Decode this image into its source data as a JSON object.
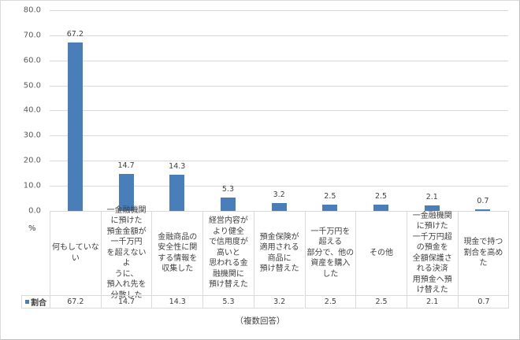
{
  "chart_data": {
    "type": "bar",
    "title": "",
    "xlabel": "",
    "ylabel": "%",
    "ylim": [
      0,
      80
    ],
    "yticks": [
      "0.0",
      "10.0",
      "20.0",
      "30.0",
      "40.0",
      "50.0",
      "60.0",
      "70.0",
      "80.0"
    ],
    "grid": true,
    "legend": {
      "position": "data-table",
      "entries": [
        "割合"
      ]
    },
    "categories": [
      "何もしていない",
      "一金融機関に預けた預金金額が一千万円を超えないように、預入れ先を分散した",
      "金融商品の安全性に関する情報を収集した",
      "経営内容がより健全で信用度が高いと思われる金融機関に預け替えた",
      "預金保険が適用される商品に預け替えた",
      "一千万円を超える部分で、他の資産を購入した",
      "その他",
      "一金融機関に預けた一千万円超の預金を全額保護される決済用預金へ預け替えた",
      "現金で持つ割合を高めた"
    ],
    "series": [
      {
        "name": "割合",
        "color": "#4a7ebb",
        "values": [
          67.2,
          14.7,
          14.3,
          5.3,
          3.2,
          2.5,
          2.5,
          2.1,
          0.7
        ]
      }
    ],
    "note": "（複数回答）"
  },
  "axis": {
    "unit_label": "%",
    "ticks": [
      {
        "label": "80.0",
        "value": 80
      },
      {
        "label": "70.0",
        "value": 70
      },
      {
        "label": "60.0",
        "value": 60
      },
      {
        "label": "50.0",
        "value": 50
      },
      {
        "label": "40.0",
        "value": 40
      },
      {
        "label": "30.0",
        "value": 30
      },
      {
        "label": "20.0",
        "value": 20
      },
      {
        "label": "10.0",
        "value": 10
      },
      {
        "label": "0.0",
        "value": 0
      }
    ]
  },
  "table": {
    "legend_label": "割合",
    "columns": [
      {
        "label": "何もしていな\nい",
        "value": "67.2"
      },
      {
        "label": "一金融機関\nに預けた\n預金金額が\n一千万円\nを超えないよ\nうに、\n預入れ先を\n分散した",
        "value": "14.7"
      },
      {
        "label": "金融商品の\n安全性に関\nする情報を\n収集した",
        "value": "14.3"
      },
      {
        "label": "経営内容が\nより健全\nで信用度が\n高いと\n思われる金\n融機関に\n預け替えた",
        "value": "5.3"
      },
      {
        "label": "預金保険が\n適用される\n商品に\n預け替えた",
        "value": "3.2"
      },
      {
        "label": "一千万円を\n超える\n部分で、他の\n資産を購入\nした",
        "value": "2.5"
      },
      {
        "label": "その他",
        "value": "2.5"
      },
      {
        "label": "一金融機関\nに預けた\n一千万円超\nの預金を\n全額保護さ\nれる決済\n用預金へ預\nけ替えた",
        "value": "2.1"
      },
      {
        "label": "現金で持つ\n割合を高め\nた",
        "value": "0.7"
      }
    ]
  },
  "footer": {
    "note": "（複数回答）"
  }
}
